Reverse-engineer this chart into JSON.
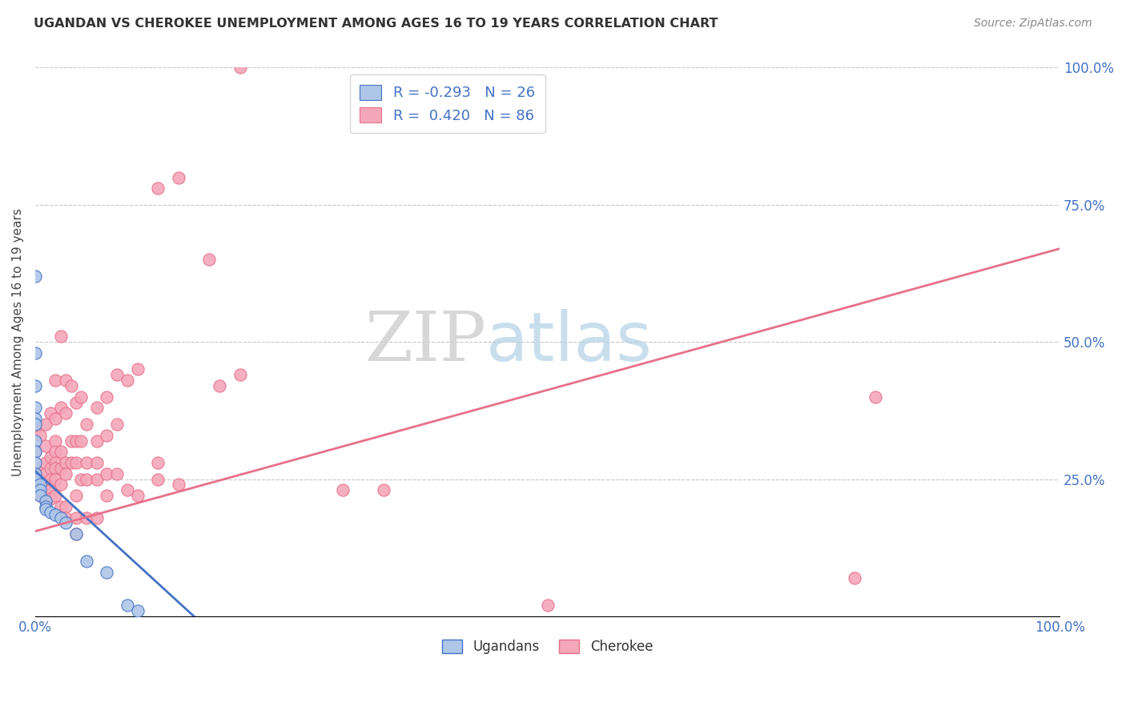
{
  "title": "UGANDAN VS CHEROKEE UNEMPLOYMENT AMONG AGES 16 TO 19 YEARS CORRELATION CHART",
  "source": "Source: ZipAtlas.com",
  "ylabel": "Unemployment Among Ages 16 to 19 years",
  "right_yticks": [
    "100.0%",
    "75.0%",
    "50.0%",
    "25.0%"
  ],
  "right_ytick_vals": [
    1.0,
    0.75,
    0.5,
    0.25
  ],
  "legend_ugandan": "R = -0.293   N = 26",
  "legend_cherokee": "R =  0.420   N = 86",
  "legend_label1": "Ugandans",
  "legend_label2": "Cherokee",
  "ugandan_color": "#aec6e8",
  "cherokee_color": "#f4a7b9",
  "ugandan_line_color": "#4472c4",
  "cherokee_line_color": "#e8708a",
  "ugandan_points": [
    [
      0.0,
      0.62
    ],
    [
      0.0,
      0.48
    ],
    [
      0.0,
      0.42
    ],
    [
      0.0,
      0.38
    ],
    [
      0.0,
      0.36
    ],
    [
      0.0,
      0.35
    ],
    [
      0.0,
      0.32
    ],
    [
      0.0,
      0.3
    ],
    [
      0.0,
      0.28
    ],
    [
      0.0,
      0.26
    ],
    [
      0.0,
      0.25
    ],
    [
      0.005,
      0.24
    ],
    [
      0.005,
      0.23
    ],
    [
      0.005,
      0.22
    ],
    [
      0.01,
      0.21
    ],
    [
      0.01,
      0.2
    ],
    [
      0.01,
      0.195
    ],
    [
      0.015,
      0.19
    ],
    [
      0.02,
      0.185
    ],
    [
      0.025,
      0.18
    ],
    [
      0.03,
      0.17
    ],
    [
      0.04,
      0.15
    ],
    [
      0.05,
      0.1
    ],
    [
      0.07,
      0.08
    ],
    [
      0.09,
      0.02
    ],
    [
      0.1,
      0.01
    ]
  ],
  "cherokee_points": [
    [
      0.0,
      0.34
    ],
    [
      0.0,
      0.3
    ],
    [
      0.0,
      0.27
    ],
    [
      0.005,
      0.33
    ],
    [
      0.005,
      0.25
    ],
    [
      0.005,
      0.23
    ],
    [
      0.005,
      0.22
    ],
    [
      0.01,
      0.35
    ],
    [
      0.01,
      0.31
    ],
    [
      0.01,
      0.28
    ],
    [
      0.01,
      0.26
    ],
    [
      0.01,
      0.24
    ],
    [
      0.01,
      0.22
    ],
    [
      0.01,
      0.21
    ],
    [
      0.015,
      0.37
    ],
    [
      0.015,
      0.29
    ],
    [
      0.015,
      0.27
    ],
    [
      0.015,
      0.25
    ],
    [
      0.015,
      0.23
    ],
    [
      0.015,
      0.215
    ],
    [
      0.02,
      0.43
    ],
    [
      0.02,
      0.36
    ],
    [
      0.02,
      0.32
    ],
    [
      0.02,
      0.3
    ],
    [
      0.02,
      0.28
    ],
    [
      0.02,
      0.27
    ],
    [
      0.02,
      0.25
    ],
    [
      0.02,
      0.22
    ],
    [
      0.025,
      0.51
    ],
    [
      0.025,
      0.38
    ],
    [
      0.025,
      0.3
    ],
    [
      0.025,
      0.27
    ],
    [
      0.025,
      0.24
    ],
    [
      0.025,
      0.2
    ],
    [
      0.03,
      0.43
    ],
    [
      0.03,
      0.37
    ],
    [
      0.03,
      0.28
    ],
    [
      0.03,
      0.26
    ],
    [
      0.03,
      0.2
    ],
    [
      0.03,
      0.18
    ],
    [
      0.035,
      0.42
    ],
    [
      0.035,
      0.32
    ],
    [
      0.035,
      0.28
    ],
    [
      0.04,
      0.39
    ],
    [
      0.04,
      0.32
    ],
    [
      0.04,
      0.28
    ],
    [
      0.04,
      0.22
    ],
    [
      0.04,
      0.18
    ],
    [
      0.04,
      0.15
    ],
    [
      0.045,
      0.4
    ],
    [
      0.045,
      0.32
    ],
    [
      0.045,
      0.25
    ],
    [
      0.05,
      0.35
    ],
    [
      0.05,
      0.28
    ],
    [
      0.05,
      0.25
    ],
    [
      0.05,
      0.18
    ],
    [
      0.06,
      0.38
    ],
    [
      0.06,
      0.32
    ],
    [
      0.06,
      0.28
    ],
    [
      0.06,
      0.25
    ],
    [
      0.06,
      0.18
    ],
    [
      0.07,
      0.4
    ],
    [
      0.07,
      0.33
    ],
    [
      0.07,
      0.26
    ],
    [
      0.07,
      0.22
    ],
    [
      0.08,
      0.44
    ],
    [
      0.08,
      0.35
    ],
    [
      0.08,
      0.26
    ],
    [
      0.09,
      0.43
    ],
    [
      0.09,
      0.23
    ],
    [
      0.1,
      0.45
    ],
    [
      0.1,
      0.22
    ],
    [
      0.12,
      0.78
    ],
    [
      0.12,
      0.28
    ],
    [
      0.12,
      0.25
    ],
    [
      0.14,
      0.8
    ],
    [
      0.14,
      0.24
    ],
    [
      0.17,
      0.65
    ],
    [
      0.18,
      0.42
    ],
    [
      0.2,
      0.44
    ],
    [
      0.2,
      1.0
    ],
    [
      0.3,
      0.23
    ],
    [
      0.34,
      0.23
    ],
    [
      0.5,
      0.02
    ],
    [
      0.8,
      0.07
    ],
    [
      0.82,
      0.4
    ]
  ],
  "ugandan_trendline": [
    [
      0.0,
      0.265
    ],
    [
      0.155,
      0.0
    ]
  ],
  "cherokee_trendline": [
    [
      0.0,
      0.155
    ],
    [
      1.0,
      0.67
    ]
  ],
  "xlim": [
    0.0,
    1.0
  ],
  "ylim": [
    0.0,
    1.0
  ],
  "background_color": "#ffffff",
  "grid_color": "#c8c8c8"
}
